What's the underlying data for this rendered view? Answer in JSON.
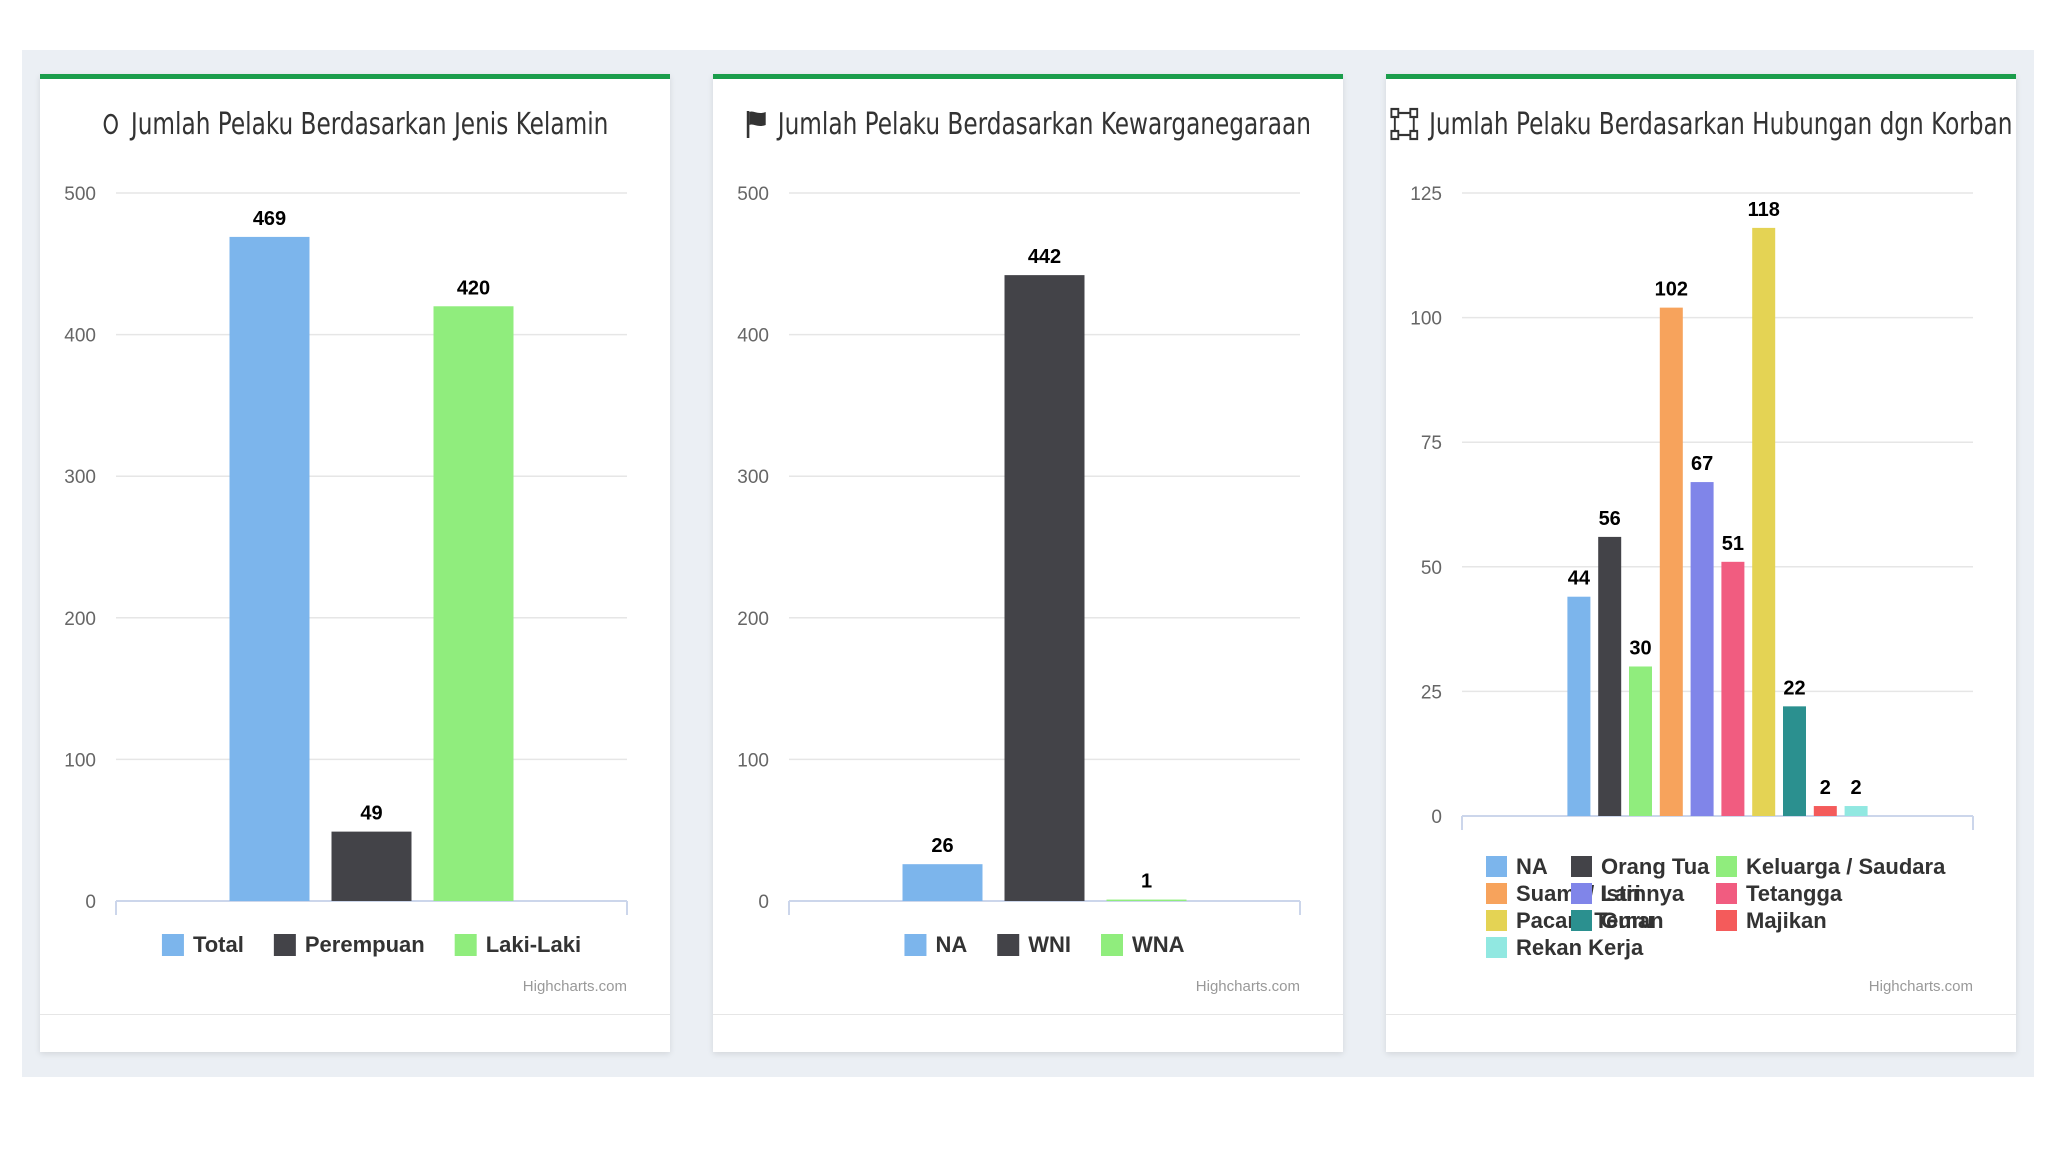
{
  "charts": [
    {
      "title": "Jumlah Pelaku Berdasarkan Jenis Kelamin",
      "icon": "circle-outline-icon",
      "credits": "Highcharts.com"
    },
    {
      "title": "Jumlah Pelaku Berdasarkan Kewarganegaraan",
      "icon": "flag-icon",
      "credits": "Highcharts.com"
    },
    {
      "title": "Jumlah Pelaku Berdasarkan Hubungan dgn Korban",
      "icon": "vector-square-icon",
      "credits": "Highcharts.com"
    }
  ],
  "chart_data": [
    {
      "type": "bar",
      "title": "Jumlah Pelaku Berdasarkan Jenis Kelamin",
      "ylim": [
        0,
        500
      ],
      "yticks": [
        0,
        100,
        200,
        300,
        400,
        500
      ],
      "grid": true,
      "legend": "bottom-center",
      "series": [
        {
          "name": "Total",
          "value": 469,
          "color": "#7cb5ec"
        },
        {
          "name": "Perempuan",
          "value": 49,
          "color": "#434348"
        },
        {
          "name": "Laki-Laki",
          "value": 420,
          "color": "#90ed7d"
        }
      ]
    },
    {
      "type": "bar",
      "title": "Jumlah Pelaku Berdasarkan Kewarganegaraan",
      "ylim": [
        0,
        500
      ],
      "yticks": [
        0,
        100,
        200,
        300,
        400,
        500
      ],
      "grid": true,
      "legend": "bottom-center",
      "series": [
        {
          "name": "NA",
          "value": 26,
          "color": "#7cb5ec"
        },
        {
          "name": "WNI",
          "value": 442,
          "color": "#434348"
        },
        {
          "name": "WNA",
          "value": 1,
          "color": "#90ed7d"
        }
      ]
    },
    {
      "type": "bar",
      "title": "Jumlah Pelaku Berdasarkan Hubungan dgn Korban",
      "ylim": [
        0,
        125
      ],
      "yticks": [
        0,
        25,
        50,
        75,
        100,
        125
      ],
      "grid": true,
      "legend": "bottom-left",
      "series": [
        {
          "name": "NA",
          "value": 44,
          "color": "#7cb5ec"
        },
        {
          "name": "Orang Tua",
          "value": 56,
          "color": "#434348"
        },
        {
          "name": "Keluarga / Saudara",
          "value": 30,
          "color": "#90ed7d"
        },
        {
          "name": "Suami / Istri",
          "value": 102,
          "color": "#f7a35c"
        },
        {
          "name": "Lainnya",
          "value": 67,
          "color": "#8085e9"
        },
        {
          "name": "Tetangga",
          "value": 51,
          "color": "#f15c80"
        },
        {
          "name": "Pacar / Teman",
          "value": 118,
          "color": "#e4d354"
        },
        {
          "name": "Guru",
          "value": 22,
          "color": "#2b908f"
        },
        {
          "name": "Majikan",
          "value": 2,
          "color": "#f45b5b"
        },
        {
          "name": "Rekan Kerja",
          "value": 2,
          "color": "#91e8e1"
        }
      ]
    }
  ]
}
